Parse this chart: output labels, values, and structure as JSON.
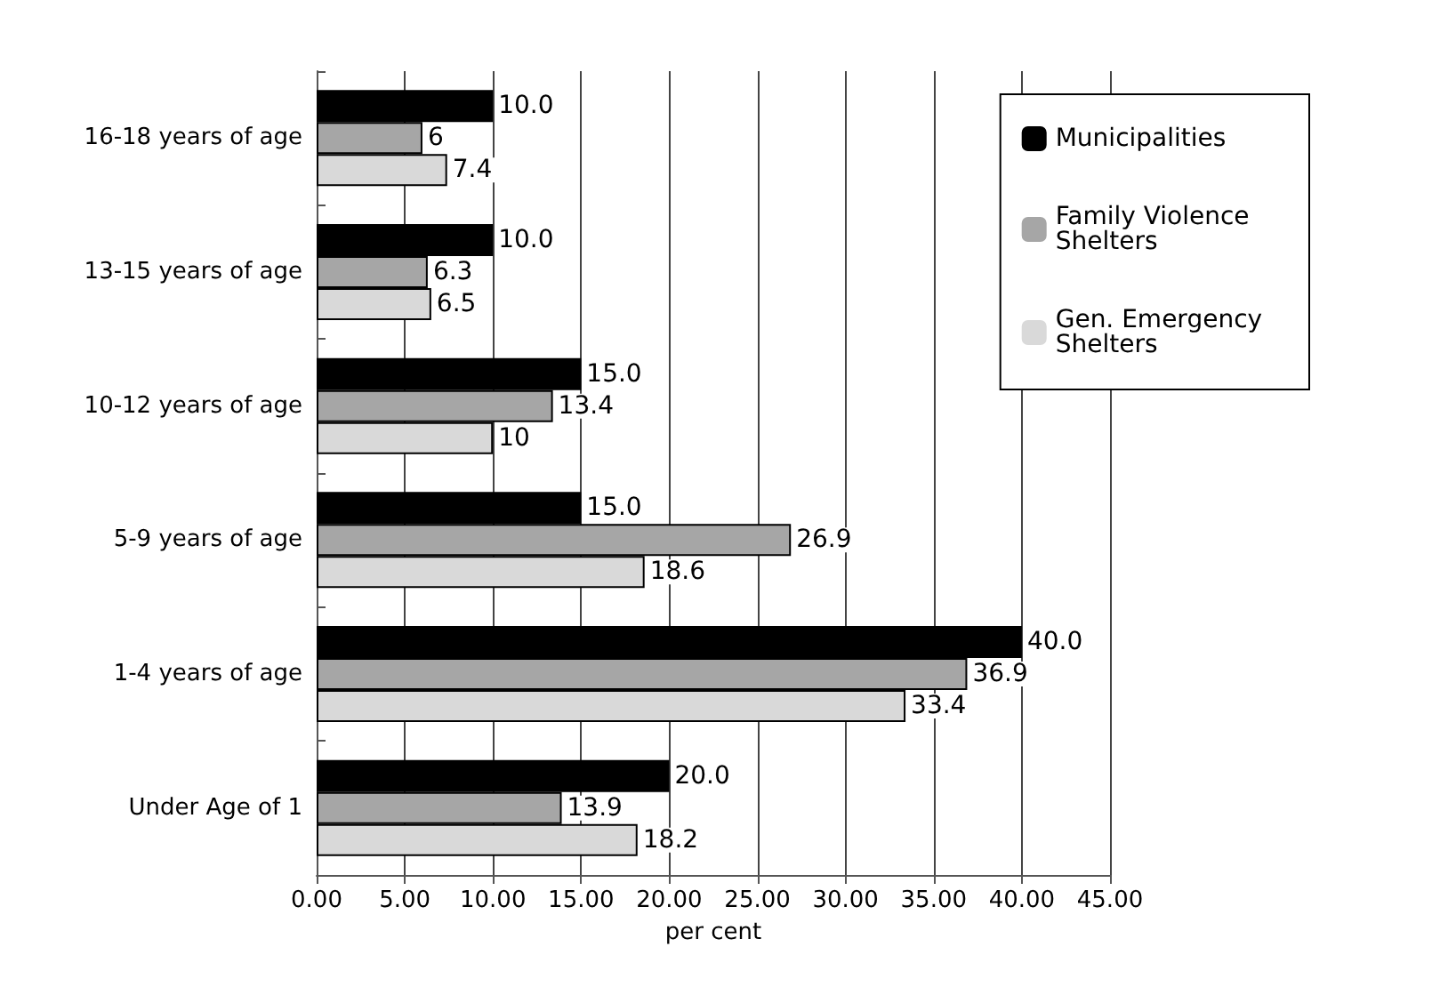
{
  "chart_data": {
    "type": "bar",
    "orientation": "horizontal",
    "xlabel": "per cent",
    "categories": [
      "16-18 years of age",
      "13-15 years of age",
      "10-12 years of age",
      "5-9 years of age",
      "1-4 years of age",
      "Under Age of 1"
    ],
    "series": [
      {
        "name": "Municipalities",
        "color": "#000000",
        "values": [
          10,
          10,
          15,
          15,
          40,
          20
        ],
        "value_labels": [
          "10.0",
          "10.0",
          "15.0",
          "15.0",
          "40.0",
          "20.0"
        ]
      },
      {
        "name": "Family Violence Shelters",
        "color": "#a6a6a6",
        "values": [
          6,
          6.3,
          13.4,
          26.9,
          36.9,
          13.9
        ],
        "value_labels": [
          "6",
          "6.3",
          "13.4",
          "26.9",
          "36.9",
          "13.9"
        ]
      },
      {
        "name": "Gen. Emergency Shelters",
        "color": "#d9d9d9",
        "values": [
          7.4,
          6.5,
          10,
          18.6,
          33.4,
          18.2
        ],
        "value_labels": [
          "7.4",
          "6.5",
          "10",
          "18.6",
          "33.4",
          "18.2"
        ]
      }
    ],
    "xlim": [
      0,
      45
    ],
    "xticks": [
      {
        "value": 0,
        "label": "0.00"
      },
      {
        "value": 5,
        "label": "5.00"
      },
      {
        "value": 10,
        "label": "10.00"
      },
      {
        "value": 15,
        "label": "15.00"
      },
      {
        "value": 20,
        "label": "20.00"
      },
      {
        "value": 25,
        "label": "25.00"
      },
      {
        "value": 30,
        "label": "30.00"
      },
      {
        "value": 35,
        "label": "35.00"
      },
      {
        "value": 40,
        "label": "40.00"
      },
      {
        "value": 45,
        "label": "45.00"
      }
    ],
    "grid": "x",
    "legend": "top right"
  }
}
